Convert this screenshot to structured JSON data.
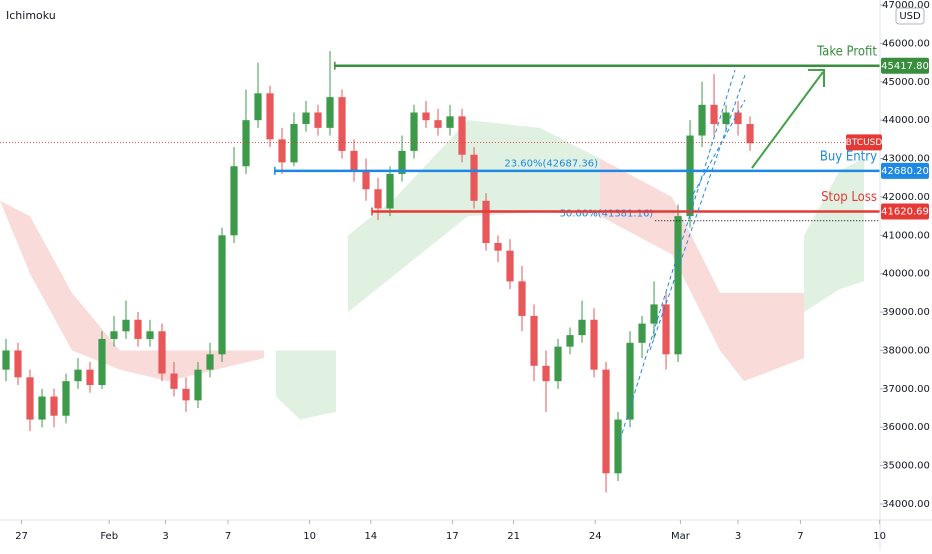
{
  "chart_data": {
    "type": "candlestick",
    "title": "Ichimoku",
    "currency": "USD",
    "up_color": "#3d9a4a",
    "down_color": "#e8575a",
    "xlim": [
      0,
      73.33
    ],
    "ylim": [
      33583,
      47131
    ],
    "xticks": [
      {
        "value": 1.8,
        "label": "27"
      },
      {
        "value": 9.1,
        "label": "Feb"
      },
      {
        "value": 13.8,
        "label": "3"
      },
      {
        "value": 19,
        "label": "7"
      },
      {
        "value": 25.8,
        "label": "10"
      },
      {
        "value": 30.9,
        "label": "14"
      },
      {
        "value": 37.7,
        "label": "17"
      },
      {
        "value": 42.8,
        "label": "21"
      },
      {
        "value": 49.6,
        "label": "24"
      },
      {
        "value": 56.7,
        "label": "Mar"
      },
      {
        "value": 61.5,
        "label": "3"
      },
      {
        "value": 66.7,
        "label": "7"
      },
      {
        "value": 73.3,
        "label": "10"
      }
    ],
    "yticks": [
      {
        "value": 34000,
        "label": "34000.00"
      },
      {
        "value": 35000,
        "label": "35000.00"
      },
      {
        "value": 36000,
        "label": "36000.00"
      },
      {
        "value": 37000,
        "label": "37000.00"
      },
      {
        "value": 38000,
        "label": "38000.00"
      },
      {
        "value": 39000,
        "label": "39000.00"
      },
      {
        "value": 40000,
        "label": "40000.00"
      },
      {
        "value": 41000,
        "label": "41000.00"
      },
      {
        "value": 42000,
        "label": "42000.00"
      },
      {
        "value": 43000,
        "label": "43000.00"
      },
      {
        "value": 44000,
        "label": "44000.00"
      },
      {
        "value": 45000,
        "label": "45000.00"
      },
      {
        "value": 46000,
        "label": "46000.00"
      },
      {
        "value": 47000,
        "label": "47000.00"
      }
    ],
    "open": [
      37500,
      38000,
      37300,
      36200,
      36800,
      36300,
      37200,
      37500,
      37100,
      38300,
      38500,
      38800,
      38300,
      38500,
      37400,
      37000,
      36700,
      37500,
      37900,
      41000,
      42800,
      44000,
      44700,
      43500,
      42900,
      43900,
      44200,
      43800,
      44600,
      43200,
      42700,
      42200,
      41700,
      42600,
      43200,
      44200,
      44000,
      43800,
      44100,
      43100,
      41900,
      40800,
      40600,
      39800,
      38900,
      37600,
      37200,
      38100,
      38400,
      38800,
      37500,
      34800,
      36200,
      38200,
      38700,
      39200,
      37900,
      41500,
      43600,
      44400,
      43900,
      44200,
      43900
    ],
    "close": [
      38000,
      37300,
      36200,
      36800,
      36300,
      37200,
      37500,
      37100,
      38300,
      38500,
      38800,
      38300,
      38500,
      37400,
      37000,
      36700,
      37500,
      37900,
      41000,
      42800,
      44000,
      44700,
      43500,
      42900,
      43900,
      44200,
      43800,
      44600,
      43200,
      42700,
      42200,
      41700,
      42600,
      43200,
      44200,
      44000,
      43800,
      44100,
      43100,
      41900,
      40800,
      40600,
      39800,
      38900,
      37600,
      37200,
      38100,
      38400,
      38800,
      37500,
      34800,
      36200,
      38200,
      38700,
      39200,
      37900,
      41500,
      43600,
      44400,
      43900,
      44200,
      43900,
      43400
    ],
    "high": [
      38300,
      38200,
      37500,
      37000,
      37000,
      37400,
      37800,
      37700,
      38500,
      38900,
      39300,
      39000,
      38800,
      38700,
      37700,
      37300,
      37700,
      38200,
      41200,
      43300,
      44800,
      45500,
      44900,
      43800,
      44200,
      44500,
      44400,
      45800,
      44800,
      43500,
      43000,
      42500,
      42800,
      43600,
      44400,
      44500,
      44300,
      44400,
      44300,
      43300,
      42100,
      41000,
      40900,
      40200,
      39200,
      38000,
      38300,
      38600,
      39300,
      39100,
      37700,
      36400,
      38500,
      38900,
      39800,
      39500,
      41800,
      44000,
      45000,
      45200,
      44400,
      44500,
      44100
    ],
    "low": [
      37200,
      37100,
      35900,
      36000,
      36000,
      36100,
      37000,
      36900,
      37000,
      38100,
      38300,
      38100,
      38100,
      37200,
      36800,
      36400,
      36500,
      37300,
      37700,
      40800,
      42600,
      43800,
      43300,
      42600,
      42800,
      43700,
      43600,
      43600,
      43000,
      42400,
      41900,
      41400,
      41500,
      42400,
      43000,
      43800,
      43600,
      43600,
      42900,
      41700,
      40600,
      40300,
      39600,
      38500,
      37200,
      36400,
      37000,
      37900,
      38200,
      37300,
      34300,
      34600,
      36000,
      37800,
      38300,
      37500,
      37700,
      41200,
      43300,
      43600,
      43700,
      43600,
      43200
    ],
    "cloud": [
      {
        "color": "#f8d3d0",
        "x": [
          0,
          2.5,
          6,
          10,
          14,
          22
        ],
        "upper": [
          41900,
          41500,
          39500,
          38000,
          38000,
          38000
        ],
        "lower": [
          41900,
          40000,
          38000,
          37500,
          37200,
          37800
        ]
      },
      {
        "color": "#d8eedb",
        "x": [
          23,
          25,
          28
        ],
        "upper": [
          38000,
          38000,
          38000
        ],
        "lower": [
          36800,
          36200,
          36400
        ]
      },
      {
        "color": "#d8eedb",
        "x": [
          29,
          33,
          39,
          45,
          50
        ],
        "upper": [
          41000,
          42000,
          44000,
          43800,
          43000
        ],
        "lower": [
          39000,
          40000,
          41500,
          41600,
          41500
        ]
      },
      {
        "color": "#f8d3d0",
        "x": [
          50,
          56,
          60,
          62,
          67
        ],
        "upper": [
          43000,
          42000,
          39500,
          39500,
          39500
        ],
        "lower": [
          41500,
          40500,
          38000,
          37200,
          37800
        ]
      },
      {
        "color": "#d8eedb",
        "x": [
          67,
          70,
          72
        ],
        "upper": [
          41000,
          42700,
          43000
        ],
        "lower": [
          39000,
          39600,
          39800
        ]
      }
    ],
    "levels": [
      {
        "label": "Take Profit",
        "value": 45417.8,
        "value_label": "45417.80",
        "color": "#388e3c",
        "x_start": 27.9
      },
      {
        "label": "Buy Entry",
        "value": 42680.2,
        "value_label": "42680.20",
        "color": "#1e88e5",
        "x_start": 22.9
      },
      {
        "label": "Stop Loss",
        "value": 41620.69,
        "value_label": "41620.69",
        "color": "#e53935",
        "x_start": 31
      }
    ],
    "fib_levels": [
      {
        "label": "23.60%(42687.36)",
        "value": 42687.36,
        "x_start": 50
      },
      {
        "label": "50.00%(41381.16)",
        "value": 41381.16,
        "x_start": 54.6
      }
    ],
    "last_price": {
      "label": "BTCUSD",
      "value": 43420,
      "color": "#e53935"
    }
  }
}
